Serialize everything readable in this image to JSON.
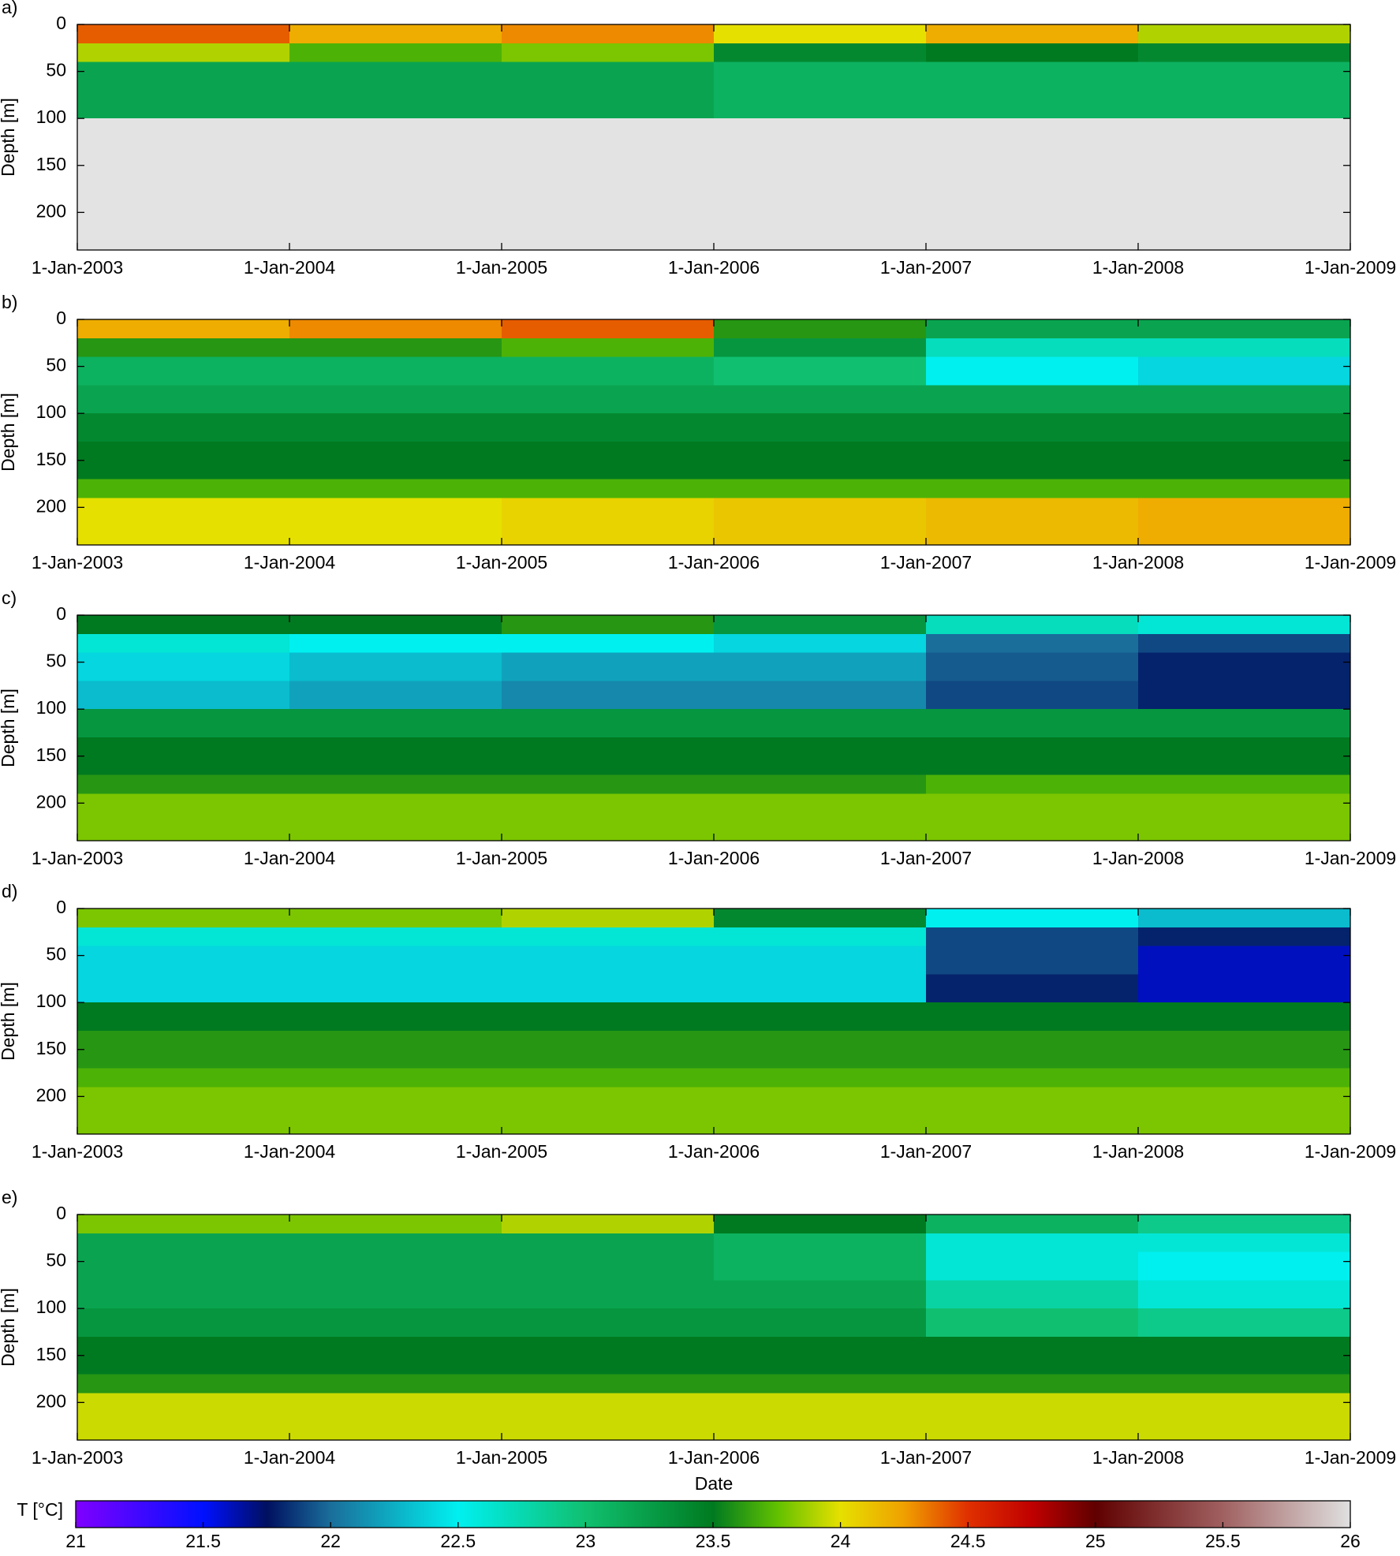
{
  "chart_data": [
    {
      "type": "heatmap",
      "label": "a)",
      "ylabel": "Depth [m]",
      "xticks": [
        "1-Jan-2003",
        "1-Jan-2004",
        "1-Jan-2005",
        "1-Jan-2006",
        "1-Jan-2007",
        "1-Jan-2008",
        "1-Jan-2009"
      ],
      "ylim": [
        0,
        240
      ],
      "yticks": [
        0,
        50,
        100,
        150,
        200
      ],
      "y_inverted": true,
      "depth_bins": [
        0,
        20,
        40,
        70,
        100,
        130,
        170,
        190,
        240
      ],
      "missing_color": "#e3e3e3",
      "values": [
        [
          24.4,
          24.2,
          24.3,
          24.0,
          24.2,
          23.9
        ],
        [
          23.9,
          23.7,
          23.8,
          23.4,
          23.5,
          23.4
        ],
        [
          23.2,
          23.2,
          23.2,
          23.1,
          23.1,
          23.1
        ],
        [
          23.2,
          23.2,
          23.2,
          23.1,
          23.1,
          23.1
        ],
        [
          null,
          null,
          null,
          null,
          null,
          null
        ],
        [
          null,
          null,
          null,
          null,
          null,
          null
        ],
        [
          null,
          null,
          null,
          null,
          null,
          null
        ],
        [
          null,
          null,
          null,
          null,
          null,
          null
        ]
      ]
    },
    {
      "type": "heatmap",
      "label": "b)",
      "ylabel": "Depth [m]",
      "xticks": [
        "1-Jan-2003",
        "1-Jan-2004",
        "1-Jan-2005",
        "1-Jan-2006",
        "1-Jan-2007",
        "1-Jan-2008",
        "1-Jan-2009"
      ],
      "ylim": [
        0,
        240
      ],
      "yticks": [
        0,
        50,
        100,
        150,
        200
      ],
      "y_inverted": true,
      "depth_bins": [
        0,
        20,
        40,
        70,
        100,
        130,
        170,
        190,
        240
      ],
      "values": [
        [
          24.2,
          24.3,
          24.4,
          23.6,
          23.2,
          23.2
        ],
        [
          23.6,
          23.6,
          23.7,
          23.3,
          22.7,
          22.7
        ],
        [
          23.1,
          23.1,
          23.1,
          23.0,
          22.5,
          22.4
        ],
        [
          23.2,
          23.2,
          23.2,
          23.2,
          23.2,
          23.2
        ],
        [
          23.4,
          23.4,
          23.4,
          23.4,
          23.4,
          23.4
        ],
        [
          23.5,
          23.5,
          23.5,
          23.5,
          23.5,
          23.5
        ],
        [
          23.7,
          23.7,
          23.7,
          23.7,
          23.7,
          23.7
        ],
        [
          24.0,
          24.0,
          24.05,
          24.1,
          24.15,
          24.2
        ]
      ]
    },
    {
      "type": "heatmap",
      "label": "c)",
      "ylabel": "Depth [m]",
      "xticks": [
        "1-Jan-2003",
        "1-Jan-2004",
        "1-Jan-2005",
        "1-Jan-2006",
        "1-Jan-2007",
        "1-Jan-2008",
        "1-Jan-2009"
      ],
      "ylim": [
        0,
        240
      ],
      "yticks": [
        0,
        50,
        100,
        150,
        200
      ],
      "y_inverted": true,
      "depth_bins": [
        0,
        20,
        40,
        70,
        100,
        130,
        170,
        190,
        240
      ],
      "values": [
        [
          23.5,
          23.5,
          23.6,
          23.3,
          22.7,
          22.6
        ],
        [
          22.6,
          22.5,
          22.5,
          22.4,
          22.0,
          21.9
        ],
        [
          22.4,
          22.3,
          22.2,
          22.2,
          21.95,
          21.8
        ],
        [
          22.3,
          22.2,
          22.1,
          22.1,
          21.9,
          21.8
        ],
        [
          23.3,
          23.3,
          23.3,
          23.3,
          23.3,
          23.3
        ],
        [
          23.5,
          23.5,
          23.5,
          23.5,
          23.5,
          23.5
        ],
        [
          23.6,
          23.6,
          23.6,
          23.6,
          23.7,
          23.7
        ],
        [
          23.8,
          23.8,
          23.8,
          23.8,
          23.8,
          23.8
        ]
      ]
    },
    {
      "type": "heatmap",
      "label": "d)",
      "ylabel": "Depth [m]",
      "xticks": [
        "1-Jan-2003",
        "1-Jan-2004",
        "1-Jan-2005",
        "1-Jan-2006",
        "1-Jan-2007",
        "1-Jan-2008",
        "1-Jan-2009"
      ],
      "ylim": [
        0,
        240
      ],
      "yticks": [
        0,
        50,
        100,
        150,
        200
      ],
      "y_inverted": true,
      "depth_bins": [
        0,
        20,
        40,
        70,
        100,
        130,
        170,
        190,
        240
      ],
      "values": [
        [
          23.8,
          23.8,
          23.9,
          23.4,
          22.5,
          22.3
        ],
        [
          22.6,
          22.6,
          22.6,
          22.6,
          21.9,
          21.8
        ],
        [
          22.4,
          22.4,
          22.4,
          22.4,
          21.9,
          21.6
        ],
        [
          22.4,
          22.4,
          22.4,
          22.4,
          21.8,
          21.6
        ],
        [
          23.5,
          23.5,
          23.5,
          23.5,
          23.5,
          23.5
        ],
        [
          23.6,
          23.6,
          23.6,
          23.6,
          23.6,
          23.6
        ],
        [
          23.7,
          23.7,
          23.7,
          23.7,
          23.7,
          23.7
        ],
        [
          23.8,
          23.8,
          23.8,
          23.8,
          23.8,
          23.8
        ]
      ]
    },
    {
      "type": "heatmap",
      "label": "e)",
      "ylabel": "Depth [m]",
      "xlabel": "Date",
      "xticks": [
        "1-Jan-2003",
        "1-Jan-2004",
        "1-Jan-2005",
        "1-Jan-2006",
        "1-Jan-2007",
        "1-Jan-2008",
        "1-Jan-2009"
      ],
      "ylim": [
        0,
        240
      ],
      "yticks": [
        0,
        50,
        100,
        150,
        200
      ],
      "y_inverted": true,
      "depth_bins": [
        0,
        20,
        40,
        70,
        100,
        130,
        170,
        190,
        240
      ],
      "values": [
        [
          23.8,
          23.8,
          23.9,
          23.5,
          23.1,
          22.9
        ],
        [
          23.2,
          23.2,
          23.2,
          23.1,
          22.6,
          22.6
        ],
        [
          23.2,
          23.2,
          23.2,
          23.1,
          22.6,
          22.5
        ],
        [
          23.2,
          23.2,
          23.2,
          23.2,
          22.8,
          22.6
        ],
        [
          23.3,
          23.3,
          23.3,
          23.3,
          23.0,
          22.9
        ],
        [
          23.5,
          23.5,
          23.5,
          23.5,
          23.5,
          23.5
        ],
        [
          23.6,
          23.6,
          23.6,
          23.6,
          23.6,
          23.6
        ],
        [
          23.95,
          23.95,
          23.95,
          23.95,
          23.95,
          23.95
        ]
      ]
    },
    {
      "type": "colorbar",
      "label": "T [°C]",
      "xlim": [
        21,
        26
      ],
      "xticks": [
        21,
        21.5,
        22,
        22.5,
        23,
        23.5,
        24,
        24.5,
        25,
        25.5,
        26
      ],
      "colormap": [
        {
          "value": 21,
          "color": "#8000ff"
        },
        {
          "value": 21.5,
          "color": "#0010ff"
        },
        {
          "value": 21.75,
          "color": "#001060"
        },
        {
          "value": 22,
          "color": "#1a6e9a"
        },
        {
          "value": 22.5,
          "color": "#00f0f0"
        },
        {
          "value": 23,
          "color": "#10c070"
        },
        {
          "value": 23.5,
          "color": "#007a20"
        },
        {
          "value": 23.75,
          "color": "#60c000"
        },
        {
          "value": 24,
          "color": "#e6e000"
        },
        {
          "value": 24.25,
          "color": "#f0a000"
        },
        {
          "value": 24.5,
          "color": "#e03000"
        },
        {
          "value": 24.75,
          "color": "#c00000"
        },
        {
          "value": 25,
          "color": "#600000"
        },
        {
          "value": 25.5,
          "color": "#a06060"
        },
        {
          "value": 26,
          "color": "#e0e0e0"
        }
      ]
    }
  ]
}
